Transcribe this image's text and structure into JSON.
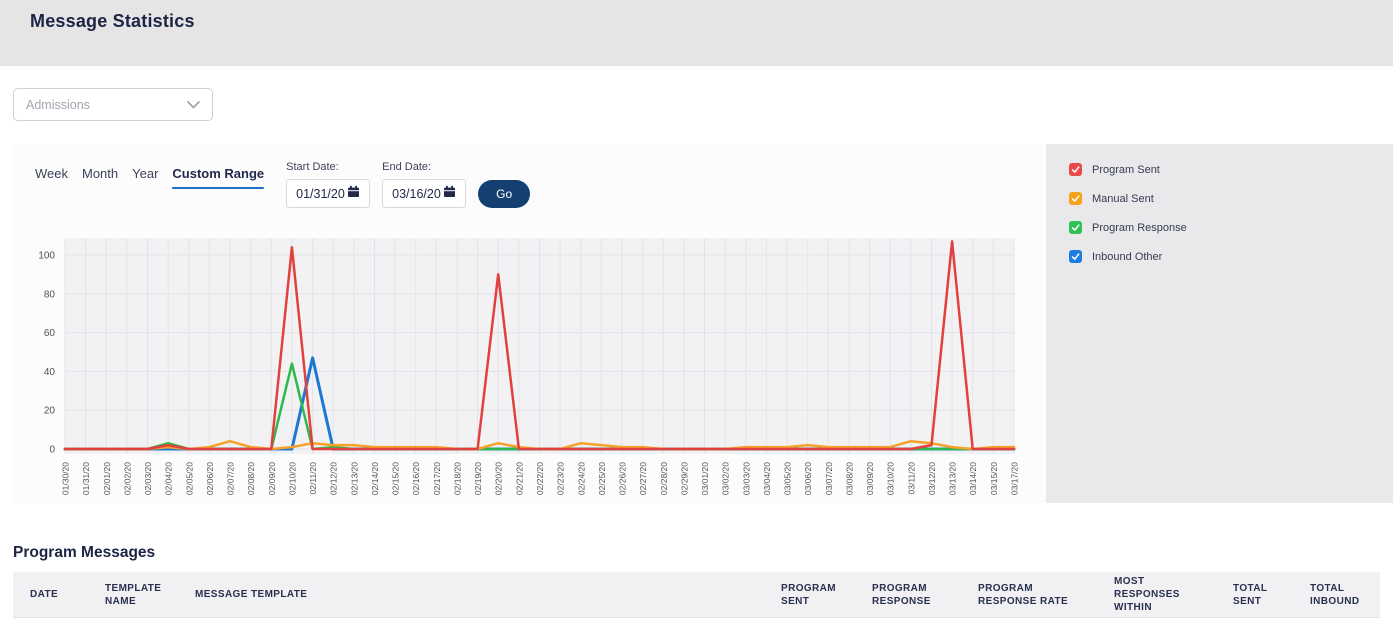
{
  "page": {
    "title": "Message Statistics"
  },
  "filter": {
    "selected": "Admissions"
  },
  "chart_panel": {
    "tabs": [
      {
        "label": "Week",
        "active": false
      },
      {
        "label": "Month",
        "active": false
      },
      {
        "label": "Year",
        "active": false
      },
      {
        "label": "Custom Range",
        "active": true
      }
    ],
    "start_date_label": "Start Date:",
    "start_date_value": "01/31/20",
    "end_date_label": "End Date:",
    "end_date_value": "03/16/20",
    "go_label": "Go"
  },
  "legend": {
    "items": [
      {
        "label": "Program Sent",
        "color": "#e74a4a"
      },
      {
        "label": "Manual Sent",
        "color": "#f7a11c"
      },
      {
        "label": "Program Response",
        "color": "#2ec155"
      },
      {
        "label": "Inbound Other",
        "color": "#1d7ce0"
      }
    ]
  },
  "chart_data": {
    "type": "line",
    "title": "",
    "xlabel": "",
    "ylabel": "",
    "ylim": [
      0,
      100
    ],
    "yticks": [
      0,
      20,
      40,
      60,
      80,
      100
    ],
    "grid": true,
    "legend_position": "right",
    "categories": [
      "01/30/20",
      "01/31/20",
      "02/01/20",
      "02/02/20",
      "02/03/20",
      "02/04/20",
      "02/05/20",
      "02/06/20",
      "02/07/20",
      "02/08/20",
      "02/09/20",
      "02/10/20",
      "02/11/20",
      "02/12/20",
      "02/13/20",
      "02/14/20",
      "02/15/20",
      "02/16/20",
      "02/17/20",
      "02/18/20",
      "02/19/20",
      "02/20/20",
      "02/21/20",
      "02/22/20",
      "02/23/20",
      "02/24/20",
      "02/25/20",
      "02/26/20",
      "02/27/20",
      "02/28/20",
      "02/29/20",
      "03/01/20",
      "03/02/20",
      "03/03/20",
      "03/04/20",
      "03/05/20",
      "03/06/20",
      "03/07/20",
      "03/08/20",
      "03/09/20",
      "03/10/20",
      "03/11/20",
      "03/12/20",
      "03/13/20",
      "03/14/20",
      "03/15/20",
      "03/17/20"
    ],
    "series": [
      {
        "name": "Program Sent",
        "color": "#e2403f",
        "values": [
          0,
          0,
          0,
          0,
          0,
          2,
          0,
          0,
          0,
          0,
          0,
          104,
          0,
          0,
          0,
          0,
          0,
          0,
          0,
          0,
          0,
          90,
          0,
          0,
          0,
          0,
          0,
          0,
          0,
          0,
          0,
          0,
          0,
          0,
          0,
          0,
          0,
          0,
          0,
          0,
          0,
          0,
          2,
          107,
          0,
          0,
          0
        ]
      },
      {
        "name": "Manual Sent",
        "color": "#f7a12a",
        "values": [
          0,
          0,
          0,
          0,
          0,
          1,
          0,
          1,
          4,
          1,
          0,
          1,
          3,
          2,
          2,
          1,
          1,
          1,
          1,
          0,
          0,
          3,
          1,
          0,
          0,
          3,
          2,
          1,
          1,
          0,
          0,
          0,
          0,
          1,
          1,
          1,
          2,
          1,
          1,
          1,
          1,
          4,
          3,
          1,
          0,
          1,
          1
        ]
      },
      {
        "name": "Program Response",
        "color": "#2eb84b",
        "values": [
          0,
          0,
          0,
          0,
          0,
          3,
          0,
          0,
          0,
          0,
          0,
          44,
          0,
          1,
          0,
          0,
          0,
          0,
          0,
          0,
          0,
          0,
          0,
          0,
          0,
          0,
          0,
          0,
          0,
          0,
          0,
          0,
          0,
          0,
          0,
          0,
          0,
          0,
          0,
          0,
          0,
          0,
          0,
          0,
          0,
          0,
          0
        ]
      },
      {
        "name": "Inbound Other",
        "color": "#1d78d4",
        "values": [
          0,
          0,
          0,
          0,
          0,
          0,
          0,
          0,
          0,
          0,
          0,
          0,
          47,
          0,
          0,
          0,
          0,
          0,
          0,
          0,
          0,
          0,
          0,
          0,
          0,
          0,
          0,
          0,
          0,
          0,
          0,
          0,
          0,
          0,
          0,
          0,
          0,
          0,
          0,
          0,
          0,
          0,
          0,
          0,
          0,
          0,
          0
        ]
      }
    ]
  },
  "messages": {
    "heading": "Program Messages",
    "columns": [
      "DATE",
      "TEMPLATE NAME",
      "MESSAGE TEMPLATE",
      "PROGRAM SENT",
      "PROGRAM RESPONSE",
      "PROGRAM RESPONSE RATE",
      "MOST RESPONSES WITHIN",
      "TOTAL SENT",
      "TOTAL INBOUND"
    ]
  }
}
